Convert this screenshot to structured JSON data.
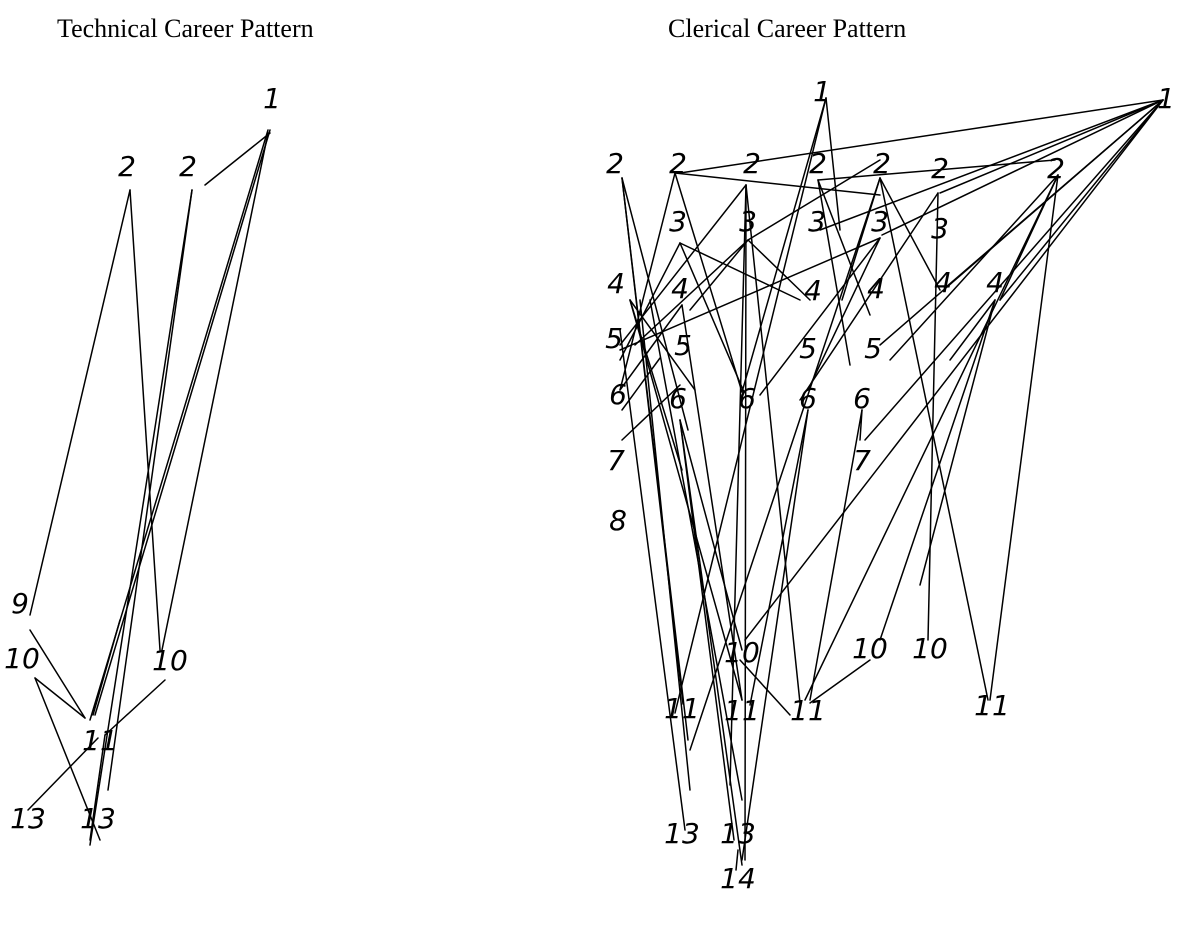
{
  "titles": {
    "technical": "Technical Career Pattern",
    "clerical": "Clerical Career Pattern"
  },
  "technical": {
    "node_labels": [
      "1",
      "2",
      "2",
      "9",
      "10",
      "10",
      "11",
      "13",
      "13"
    ]
  },
  "clerical": {
    "node_labels": [
      "1",
      "1",
      "2",
      "2",
      "2",
      "2",
      "2",
      "2",
      "2",
      "3",
      "3",
      "3",
      "3",
      "3",
      "4",
      "4",
      "4",
      "4",
      "4",
      "4",
      "5",
      "5",
      "5",
      "5",
      "6",
      "6",
      "6",
      "6",
      "6",
      "7",
      "7",
      "8",
      "10",
      "10",
      "10",
      "11",
      "11",
      "11",
      "11",
      "13",
      "13",
      "14"
    ]
  }
}
